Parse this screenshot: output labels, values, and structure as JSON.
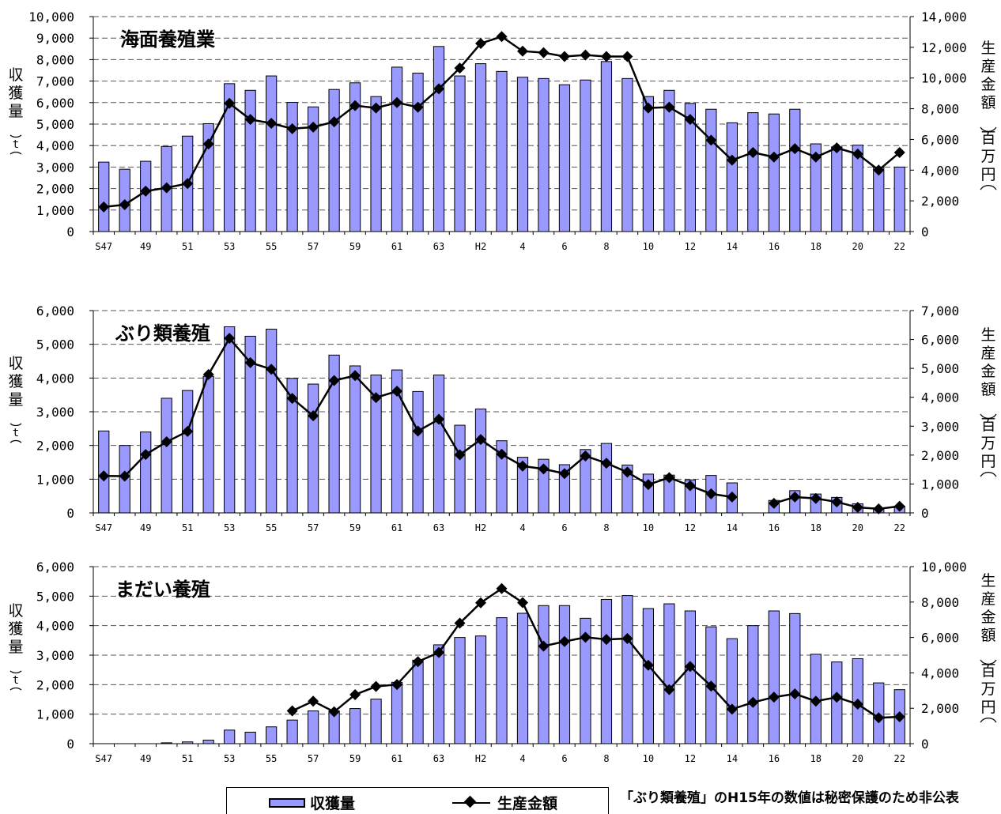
{
  "legend": {
    "bar_label": "収獲量",
    "line_label": "生産金額"
  },
  "footnote": "「ぶり類養殖」のH15年の数値は秘密保護のため非公表",
  "colors": {
    "bar_fill": "#9999ff",
    "bar_stroke": "#000000",
    "line": "#000000",
    "grid": "#555555"
  },
  "x_tick_labels": [
    "S47",
    "49",
    "51",
    "53",
    "55",
    "57",
    "59",
    "61",
    "63",
    "H2",
    "4",
    "6",
    "8",
    "10",
    "12",
    "14",
    "16",
    "18",
    "20",
    "22"
  ],
  "y_left_label_chars": [
    "収",
    "獲",
    "量"
  ],
  "y_left_unit": "t",
  "y_right_label_chars": [
    "生",
    "産",
    "金",
    "額"
  ],
  "y_right_unit_chars": [
    "百",
    "万",
    "円"
  ],
  "chart_data": [
    {
      "type": "bar+line",
      "title": "海面養殖業",
      "categories": [
        "S47",
        "S48",
        "S49",
        "S50",
        "S51",
        "S52",
        "S53",
        "S54",
        "S55",
        "S56",
        "S57",
        "S58",
        "S59",
        "S60",
        "S61",
        "S62",
        "S63",
        "H1",
        "H2",
        "H3",
        "H4",
        "H5",
        "H6",
        "H7",
        "H8",
        "H9",
        "H10",
        "H11",
        "H12",
        "H13",
        "H14",
        "H15",
        "H16",
        "H17",
        "H18",
        "H19",
        "H20",
        "H21",
        "H22"
      ],
      "ylabel_left": "収獲量（t）",
      "ylabel_right": "生産金額（百万円）",
      "ylim_left": [
        0,
        10000
      ],
      "ylim_right": [
        0,
        14000
      ],
      "left_ticks": [
        "0",
        "1,000",
        "2,000",
        "3,000",
        "4,000",
        "5,000",
        "6,000",
        "7,000",
        "8,000",
        "9,000",
        "10,000"
      ],
      "right_ticks": [
        "0",
        "2,000",
        "4,000",
        "6,000",
        "8,000",
        "10,000",
        "12,000",
        "14,000"
      ],
      "series": [
        {
          "name": "収獲量",
          "axis": "left",
          "kind": "bar",
          "values": [
            3230,
            2900,
            3270,
            3960,
            4440,
            5020,
            6880,
            6570,
            7240,
            6010,
            5800,
            6610,
            6920,
            6280,
            7650,
            7370,
            8610,
            7240,
            7810,
            7450,
            7180,
            7120,
            6830,
            7050,
            7910,
            7120,
            6280,
            6570,
            5960,
            5690,
            5060,
            5530,
            5470,
            5690,
            4080,
            3940,
            4020,
            3000,
            3000
          ]
        },
        {
          "name": "生産金額",
          "axis": "right",
          "kind": "line",
          "values": [
            1600,
            1750,
            2630,
            2850,
            3130,
            5700,
            8350,
            7300,
            7050,
            6700,
            6800,
            7150,
            8200,
            8050,
            8400,
            8100,
            9300,
            10650,
            12250,
            12700,
            11750,
            11650,
            11400,
            11500,
            11400,
            11400,
            8050,
            8100,
            7300,
            5950,
            4650,
            5150,
            4850,
            5400,
            4850,
            5450,
            5050,
            4000,
            5150
          ]
        }
      ]
    },
    {
      "type": "bar+line",
      "title": "ぶり類養殖",
      "categories": [
        "S47",
        "S48",
        "S49",
        "S50",
        "S51",
        "S52",
        "S53",
        "S54",
        "S55",
        "S56",
        "S57",
        "S58",
        "S59",
        "S60",
        "S61",
        "S62",
        "S63",
        "H1",
        "H2",
        "H3",
        "H4",
        "H5",
        "H6",
        "H7",
        "H8",
        "H9",
        "H10",
        "H11",
        "H12",
        "H13",
        "H14",
        "H15",
        "H16",
        "H17",
        "H18",
        "H19",
        "H20",
        "H21",
        "H22"
      ],
      "ylabel_left": "収獲量（t）",
      "ylabel_right": "生産金額（百万円）",
      "ylim_left": [
        0,
        6000
      ],
      "ylim_right": [
        0,
        7000
      ],
      "left_ticks": [
        "0",
        "1,000",
        "2,000",
        "3,000",
        "4,000",
        "5,000",
        "6,000"
      ],
      "right_ticks": [
        "0",
        "1,000",
        "2,000",
        "3,000",
        "4,000",
        "5,000",
        "6,000",
        "7,000"
      ],
      "series": [
        {
          "name": "収獲量",
          "axis": "left",
          "kind": "bar",
          "values": [
            2430,
            2000,
            2400,
            3400,
            3630,
            4050,
            5520,
            5240,
            5450,
            3990,
            3820,
            4680,
            4360,
            4090,
            4240,
            3600,
            4090,
            2600,
            3080,
            2140,
            1650,
            1590,
            1430,
            1880,
            2060,
            1420,
            1150,
            1120,
            980,
            1110,
            890,
            null,
            370,
            660,
            560,
            460,
            270,
            150,
            200
          ]
        },
        {
          "name": "生産金額",
          "axis": "right",
          "kind": "line",
          "values": [
            1280,
            1270,
            2020,
            2460,
            2820,
            4790,
            6040,
            5200,
            4970,
            3960,
            3360,
            4580,
            4750,
            3990,
            4210,
            2830,
            3240,
            2010,
            2540,
            2030,
            1620,
            1520,
            1360,
            1970,
            1720,
            1410,
            980,
            1220,
            940,
            660,
            550,
            null,
            330,
            550,
            500,
            380,
            190,
            140,
            230
          ]
        }
      ]
    },
    {
      "type": "bar+line",
      "title": "まだい養殖",
      "categories": [
        "S47",
        "S48",
        "S49",
        "S50",
        "S51",
        "S52",
        "S53",
        "S54",
        "S55",
        "S56",
        "S57",
        "S58",
        "S59",
        "S60",
        "S61",
        "S62",
        "S63",
        "H1",
        "H2",
        "H3",
        "H4",
        "H5",
        "H6",
        "H7",
        "H8",
        "H9",
        "H10",
        "H11",
        "H12",
        "H13",
        "H14",
        "H15",
        "H16",
        "H17",
        "H18",
        "H19",
        "H20",
        "H21",
        "H22"
      ],
      "ylabel_left": "収獲量（t）",
      "ylabel_right": "生産金額（百万円）",
      "ylim_left": [
        0,
        6000
      ],
      "ylim_right": [
        0,
        10000
      ],
      "left_ticks": [
        "0",
        "1,000",
        "2,000",
        "3,000",
        "4,000",
        "5,000",
        "6,000"
      ],
      "right_ticks": [
        "0",
        "2,000",
        "4,000",
        "6,000",
        "8,000",
        "10,000"
      ],
      "series": [
        {
          "name": "収獲量",
          "axis": "left",
          "kind": "bar",
          "values": [
            0,
            0,
            0,
            30,
            60,
            120,
            460,
            390,
            570,
            800,
            1110,
            1110,
            1190,
            1510,
            2080,
            2830,
            3350,
            3600,
            3650,
            4270,
            4420,
            4680,
            4680,
            4250,
            4890,
            5020,
            4580,
            4740,
            4500,
            3960,
            3560,
            4000,
            4500,
            4410,
            3030,
            2770,
            2880,
            2060,
            1830
          ]
        },
        {
          "name": "生産金額",
          "axis": "right",
          "kind": "line",
          "values": [
            null,
            null,
            null,
            null,
            null,
            null,
            null,
            null,
            null,
            1850,
            2400,
            1800,
            2770,
            3230,
            3340,
            4630,
            5150,
            6810,
            7960,
            8760,
            7970,
            5510,
            5770,
            6010,
            5890,
            5940,
            4430,
            3050,
            4360,
            3250,
            1950,
            2330,
            2630,
            2810,
            2400,
            2620,
            2230,
            1460,
            1520
          ]
        }
      ]
    }
  ]
}
